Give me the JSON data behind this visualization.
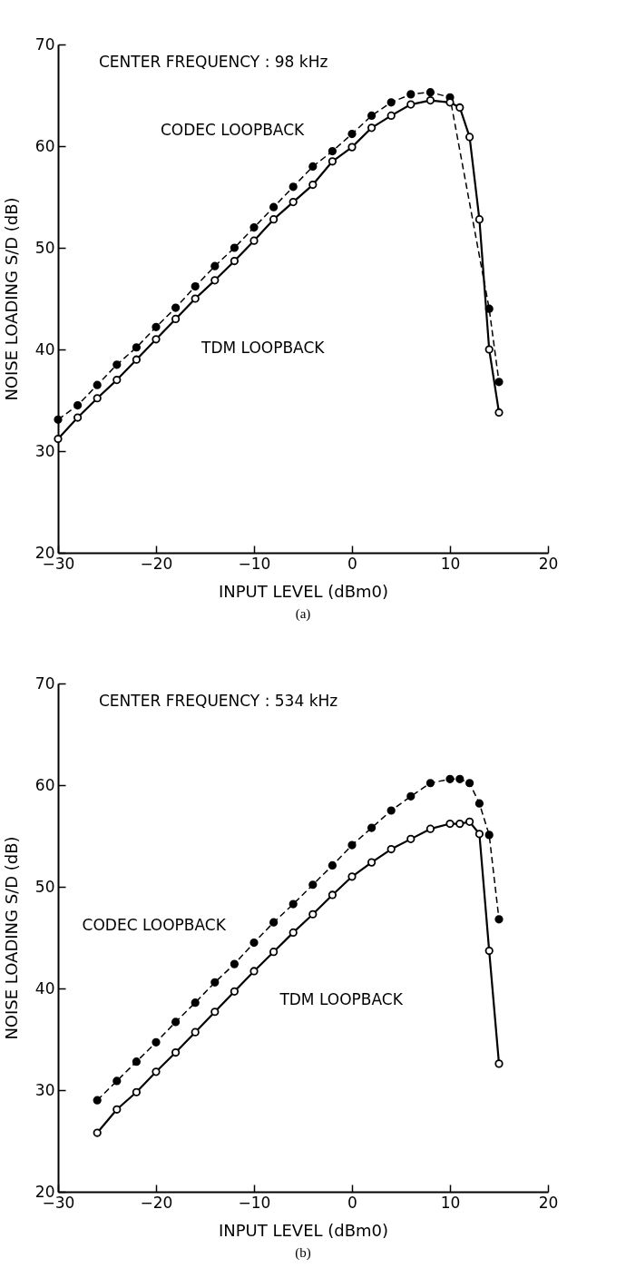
{
  "chart_data": [
    {
      "type": "line",
      "title": "CENTER FREQUENCY : 98 kHz",
      "xlabel": "INPUT LEVEL (dBm0)",
      "ylabel": "NOISE LOADING S/D (dB)",
      "annotations": [
        "(a)"
      ],
      "xlim": [
        -30,
        20
      ],
      "xticks": [
        -30,
        -20,
        -10,
        0,
        10,
        20
      ],
      "ylim": [
        20,
        70
      ],
      "yticks": [
        20,
        30,
        40,
        50,
        60,
        70
      ],
      "legend": false,
      "grid": false,
      "marker": "circle",
      "series": [
        {
          "name": "CODEC LOOPBACK",
          "color": "#000000",
          "line_style": "dashed",
          "x": [
            -30,
            -28,
            -26,
            -24,
            -22,
            -20,
            -18,
            -16,
            -14,
            -12,
            -10,
            -8,
            -6,
            -4,
            -2,
            0,
            2,
            4,
            6,
            8,
            10,
            14,
            15
          ],
          "values": [
            33.1,
            34.5,
            36.5,
            38.5,
            40.2,
            42.2,
            44.1,
            46.2,
            48.2,
            50.0,
            52.0,
            54.0,
            56.0,
            58.0,
            59.5,
            61.2,
            63.0,
            64.3,
            65.1,
            65.3,
            64.8,
            44.0,
            36.8
          ]
        },
        {
          "name": "TDM LOOPBACK",
          "color": "#000000",
          "line_style": "solid",
          "x": [
            -30,
            -28,
            -26,
            -24,
            -22,
            -20,
            -18,
            -16,
            -14,
            -12,
            -10,
            -8,
            -6,
            -4,
            -2,
            0,
            2,
            4,
            6,
            8,
            10,
            11,
            12,
            13,
            14,
            15
          ],
          "values": [
            31.2,
            33.3,
            35.2,
            37.0,
            39.0,
            41.0,
            43.0,
            45.0,
            46.8,
            48.7,
            50.7,
            52.8,
            54.5,
            56.2,
            58.5,
            59.9,
            61.8,
            63.0,
            64.1,
            64.5,
            64.3,
            63.8,
            60.9,
            52.8,
            40.0,
            33.8
          ]
        }
      ]
    },
    {
      "type": "line",
      "title": "CENTER FREQUENCY : 534 kHz",
      "xlabel": "INPUT LEVEL (dBm0)",
      "ylabel": "NOISE LOADING S/D (dB)",
      "annotations": [
        "(b)"
      ],
      "xlim": [
        -30,
        20
      ],
      "xticks": [
        -30,
        -20,
        -10,
        0,
        10,
        20
      ],
      "ylim": [
        20,
        70
      ],
      "yticks": [
        20,
        30,
        40,
        50,
        60,
        70
      ],
      "legend": false,
      "grid": false,
      "marker": "circle",
      "series": [
        {
          "name": "CODEC LOOPBACK",
          "color": "#000000",
          "line_style": "dashed",
          "x": [
            -26,
            -24,
            -22,
            -20,
            -18,
            -16,
            -14,
            -12,
            -10,
            -8,
            -6,
            -4,
            -2,
            0,
            2,
            4,
            6,
            8,
            10,
            11,
            12,
            13,
            14,
            15
          ],
          "values": [
            29.0,
            30.9,
            32.8,
            34.7,
            36.7,
            38.6,
            40.6,
            42.4,
            44.5,
            46.5,
            48.3,
            50.2,
            52.1,
            54.1,
            55.8,
            57.5,
            58.9,
            60.2,
            60.6,
            60.6,
            60.2,
            58.2,
            55.1,
            46.8
          ]
        },
        {
          "name": "TDM LOOPBACK",
          "color": "#000000",
          "line_style": "solid",
          "x": [
            -26,
            -24,
            -22,
            -20,
            -18,
            -16,
            -14,
            -12,
            -10,
            -8,
            -6,
            -4,
            -2,
            0,
            2,
            4,
            6,
            8,
            10,
            11,
            12,
            13,
            14,
            15
          ],
          "values": [
            25.8,
            28.1,
            29.8,
            31.8,
            33.7,
            35.7,
            37.7,
            39.7,
            41.7,
            43.6,
            45.5,
            47.3,
            49.2,
            51.0,
            52.4,
            53.7,
            54.7,
            55.7,
            56.2,
            56.2,
            56.4,
            55.2,
            43.7,
            32.6
          ]
        }
      ]
    }
  ]
}
